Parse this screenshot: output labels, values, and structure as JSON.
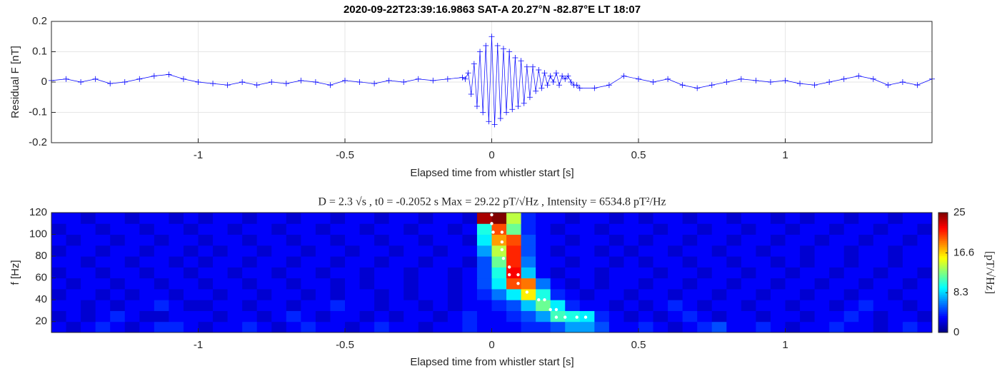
{
  "chart_data": [
    {
      "type": "line",
      "title": "2020-09-22T23:39:16.9863  SAT-A  20.27°N -82.87°E LT 18:07",
      "xlabel": "Elapsed time from whistler start  [s]",
      "ylabel": "Residual F [nT]",
      "color": "#0000ff",
      "marker": "+",
      "grid": true,
      "xlim": [
        -1.5,
        1.5
      ],
      "ylim": [
        -0.2,
        0.2
      ],
      "xticks": [
        -1,
        -0.5,
        0,
        0.5,
        1
      ],
      "yticks": [
        -0.2,
        -0.1,
        0,
        0.1,
        0.2
      ],
      "x": [
        -1.5,
        -1.45,
        -1.4,
        -1.35,
        -1.3,
        -1.25,
        -1.2,
        -1.15,
        -1.1,
        -1.05,
        -1,
        -0.95,
        -0.9,
        -0.85,
        -0.8,
        -0.75,
        -0.7,
        -0.65,
        -0.6,
        -0.55,
        -0.5,
        -0.45,
        -0.4,
        -0.35,
        -0.3,
        -0.25,
        -0.2,
        -0.15,
        -0.1,
        -0.09,
        -0.08,
        -0.07,
        -0.06,
        -0.05,
        -0.04,
        -0.03,
        -0.02,
        -0.01,
        0,
        0.01,
        0.02,
        0.03,
        0.04,
        0.05,
        0.06,
        0.07,
        0.08,
        0.09,
        0.1,
        0.11,
        0.12,
        0.13,
        0.14,
        0.15,
        0.16,
        0.17,
        0.18,
        0.19,
        0.2,
        0.21,
        0.22,
        0.23,
        0.24,
        0.25,
        0.26,
        0.27,
        0.28,
        0.29,
        0.3,
        0.35,
        0.4,
        0.45,
        0.5,
        0.55,
        0.6,
        0.65,
        0.7,
        0.75,
        0.8,
        0.85,
        0.9,
        0.95,
        1,
        1.05,
        1.1,
        1.15,
        1.2,
        1.25,
        1.3,
        1.35,
        1.4,
        1.45,
        1.5
      ],
      "values": [
        0.005,
        0.01,
        0.0,
        0.01,
        -0.005,
        0.0,
        0.01,
        0.02,
        0.025,
        0.01,
        0.0,
        -0.005,
        -0.01,
        0.0,
        -0.01,
        0.0,
        -0.005,
        0.005,
        0.0,
        -0.01,
        0.005,
        0.0,
        -0.005,
        0.005,
        0.0,
        0.01,
        0.005,
        0.01,
        0.015,
        0.01,
        0.03,
        -0.04,
        0.06,
        -0.08,
        0.1,
        -0.1,
        0.12,
        -0.13,
        0.15,
        -0.14,
        0.12,
        -0.12,
        0.11,
        -0.1,
        0.1,
        -0.09,
        0.08,
        -0.08,
        0.07,
        -0.07,
        0.05,
        -0.05,
        0.05,
        -0.03,
        0.04,
        -0.02,
        0.03,
        -0.01,
        0.02,
        0.0,
        0.03,
        -0.01,
        0.02,
        0.01,
        0.02,
        0.0,
        -0.01,
        -0.01,
        -0.02,
        -0.02,
        -0.01,
        0.02,
        0.01,
        0.0,
        0.01,
        -0.01,
        -0.02,
        -0.01,
        0.0,
        0.01,
        0.005,
        0.0,
        0.005,
        -0.005,
        -0.01,
        0.0,
        0.01,
        0.02,
        0.01,
        -0.01,
        0.0,
        -0.01,
        0.01
      ]
    },
    {
      "type": "heatmap",
      "title": "D = 2.3 √s , t0 = -0.2052 s Max = 29.22 pT/√Hz , Intensity = 6534.8 pT²/Hz",
      "xlabel": "Elapsed time from whistler start [s]",
      "ylabel": "f [Hz]",
      "colormap": "jet",
      "xlim": [
        -1.5,
        1.5
      ],
      "ylim": [
        10,
        120
      ],
      "xticks": [
        -1,
        -0.5,
        0,
        0.5,
        1
      ],
      "yticks": [
        20,
        40,
        60,
        80,
        100,
        120
      ],
      "x": [
        -1.475,
        -1.425,
        -1.375,
        -1.325,
        -1.275,
        -1.225,
        -1.175,
        -1.125,
        -1.075,
        -1.025,
        -0.975,
        -0.925,
        -0.875,
        -0.825,
        -0.775,
        -0.725,
        -0.675,
        -0.625,
        -0.575,
        -0.525,
        -0.475,
        -0.425,
        -0.375,
        -0.325,
        -0.275,
        -0.225,
        -0.175,
        -0.125,
        -0.075,
        -0.025,
        0.025,
        0.075,
        0.125,
        0.175,
        0.225,
        0.275,
        0.325,
        0.375,
        0.425,
        0.475,
        0.525,
        0.575,
        0.625,
        0.675,
        0.725,
        0.775,
        0.825,
        0.875,
        0.925,
        0.975,
        1.025,
        1.075,
        1.125,
        1.175,
        1.225,
        1.275,
        1.325,
        1.375,
        1.425,
        1.475
      ],
      "y": [
        15,
        25,
        35,
        45,
        55,
        65,
        75,
        85,
        95,
        105,
        115
      ],
      "z": [
        [
          3,
          2,
          3,
          4,
          3,
          2,
          3,
          4,
          4,
          3,
          2,
          3,
          3,
          4,
          3,
          2,
          3,
          4,
          3,
          3,
          2,
          3,
          4,
          3,
          3,
          2,
          3,
          3,
          4,
          3,
          3,
          3,
          4,
          4,
          5,
          7,
          7,
          5,
          3,
          3,
          4,
          3,
          2,
          3,
          4,
          5,
          3,
          3,
          4,
          3,
          2,
          3,
          3,
          4,
          3,
          3,
          2,
          3,
          4,
          3
        ],
        [
          2,
          3,
          2,
          3,
          4,
          3,
          2,
          2,
          3,
          3,
          3,
          2,
          3,
          3,
          2,
          3,
          4,
          3,
          2,
          3,
          3,
          2,
          3,
          2,
          3,
          3,
          2,
          3,
          4,
          3,
          3,
          4,
          5,
          7,
          11,
          10,
          9,
          4,
          3,
          2,
          3,
          2,
          3,
          4,
          3,
          2,
          3,
          3,
          2,
          3,
          3,
          2,
          3,
          3,
          4,
          3,
          2,
          3,
          3,
          2
        ],
        [
          3,
          3,
          2,
          3,
          2,
          3,
          3,
          4,
          3,
          2,
          2,
          3,
          3,
          2,
          3,
          3,
          2,
          3,
          3,
          4,
          3,
          3,
          2,
          3,
          3,
          2,
          3,
          2,
          3,
          3,
          4,
          5,
          8,
          12,
          9,
          4,
          3,
          3,
          2,
          3,
          2,
          3,
          4,
          3,
          2,
          3,
          3,
          2,
          3,
          3,
          2,
          3,
          3,
          2,
          3,
          4,
          3,
          3,
          2,
          3
        ],
        [
          2,
          3,
          3,
          2,
          3,
          2,
          3,
          3,
          2,
          3,
          3,
          2,
          3,
          3,
          2,
          3,
          3,
          2,
          3,
          2,
          3,
          3,
          2,
          3,
          2,
          3,
          3,
          2,
          3,
          4,
          6,
          9,
          16,
          10,
          4,
          3,
          2,
          3,
          3,
          2,
          3,
          3,
          2,
          3,
          3,
          2,
          3,
          3,
          2,
          3,
          3,
          2,
          3,
          3,
          2,
          3,
          3,
          2,
          3,
          3
        ],
        [
          3,
          2,
          3,
          3,
          2,
          3,
          3,
          2,
          3,
          3,
          2,
          3,
          3,
          2,
          3,
          3,
          2,
          3,
          3,
          2,
          3,
          2,
          3,
          3,
          2,
          3,
          3,
          2,
          3,
          5,
          9,
          20,
          19,
          6,
          3,
          2,
          3,
          2,
          3,
          3,
          2,
          3,
          3,
          2,
          3,
          3,
          2,
          3,
          3,
          2,
          3,
          3,
          2,
          3,
          3,
          2,
          3,
          3,
          2,
          3
        ],
        [
          2,
          3,
          3,
          2,
          3,
          3,
          2,
          3,
          3,
          2,
          3,
          3,
          2,
          3,
          3,
          2,
          3,
          3,
          2,
          3,
          3,
          2,
          3,
          3,
          2,
          3,
          3,
          2,
          3,
          5,
          10,
          22,
          8,
          3,
          2,
          3,
          3,
          2,
          3,
          3,
          3,
          2,
          3,
          3,
          2,
          3,
          3,
          2,
          3,
          3,
          2,
          3,
          3,
          2,
          3,
          3,
          2,
          3,
          3,
          2
        ],
        [
          3,
          3,
          2,
          3,
          3,
          2,
          3,
          3,
          2,
          3,
          2,
          3,
          3,
          2,
          3,
          3,
          2,
          3,
          3,
          2,
          3,
          3,
          2,
          3,
          3,
          2,
          3,
          3,
          2,
          5,
          12,
          21,
          6,
          3,
          3,
          2,
          3,
          3,
          2,
          3,
          2,
          3,
          3,
          2,
          3,
          3,
          2,
          3,
          3,
          2,
          3,
          2,
          3,
          3,
          2,
          3,
          3,
          2,
          3,
          3
        ],
        [
          2,
          3,
          3,
          2,
          3,
          3,
          2,
          3,
          3,
          2,
          3,
          2,
          3,
          3,
          2,
          3,
          3,
          2,
          3,
          3,
          2,
          3,
          3,
          2,
          3,
          3,
          2,
          3,
          3,
          7,
          14,
          21,
          5,
          3,
          2,
          3,
          3,
          2,
          3,
          2,
          3,
          3,
          2,
          3,
          3,
          2,
          3,
          3,
          2,
          3,
          3,
          2,
          3,
          3,
          2,
          3,
          3,
          2,
          3,
          3
        ],
        [
          3,
          2,
          3,
          3,
          2,
          3,
          3,
          2,
          3,
          3,
          2,
          3,
          3,
          2,
          3,
          3,
          2,
          3,
          3,
          2,
          3,
          3,
          2,
          3,
          3,
          2,
          3,
          3,
          2,
          9,
          18,
          20,
          5,
          3,
          3,
          2,
          3,
          3,
          2,
          3,
          2,
          3,
          3,
          2,
          3,
          3,
          2,
          3,
          3,
          2,
          3,
          3,
          2,
          3,
          3,
          2,
          3,
          3,
          2,
          3
        ],
        [
          2,
          3,
          3,
          2,
          3,
          3,
          2,
          3,
          3,
          2,
          3,
          3,
          2,
          3,
          3,
          2,
          3,
          3,
          2,
          3,
          3,
          2,
          3,
          3,
          2,
          3,
          3,
          2,
          3,
          10,
          20,
          12,
          4,
          3,
          2,
          3,
          3,
          2,
          3,
          3,
          3,
          2,
          3,
          3,
          2,
          3,
          3,
          2,
          3,
          3,
          2,
          3,
          3,
          2,
          3,
          3,
          2,
          3,
          3,
          2
        ],
        [
          3,
          3,
          2,
          3,
          3,
          2,
          3,
          3,
          2,
          3,
          2,
          3,
          3,
          2,
          3,
          3,
          2,
          3,
          3,
          2,
          3,
          3,
          2,
          3,
          3,
          2,
          3,
          3,
          2,
          24,
          25,
          14,
          4,
          3,
          3,
          2,
          3,
          3,
          2,
          3,
          2,
          3,
          3,
          2,
          3,
          3,
          2,
          3,
          3,
          2,
          3,
          2,
          3,
          3,
          2,
          3,
          3,
          2,
          3,
          3
        ]
      ],
      "points": {
        "color": "#ffffff",
        "x": [
          0,
          0,
          0.005,
          0.035,
          0.035,
          0.035,
          0.04,
          0.06,
          0.06,
          0.09,
          0.09,
          0.12,
          0.16,
          0.18,
          0.2,
          0.22,
          0.22,
          0.25,
          0.29,
          0.32
        ],
        "y": [
          118,
          110,
          102,
          102,
          93,
          86,
          78,
          70,
          63,
          63,
          55,
          47,
          40,
          40,
          31,
          31,
          24,
          24,
          24,
          24
        ]
      },
      "colorbar": {
        "clim": [
          0,
          25
        ],
        "ticks": [
          0,
          8.3,
          16.6,
          25
        ],
        "label": "[pT/√Hz]"
      }
    }
  ]
}
